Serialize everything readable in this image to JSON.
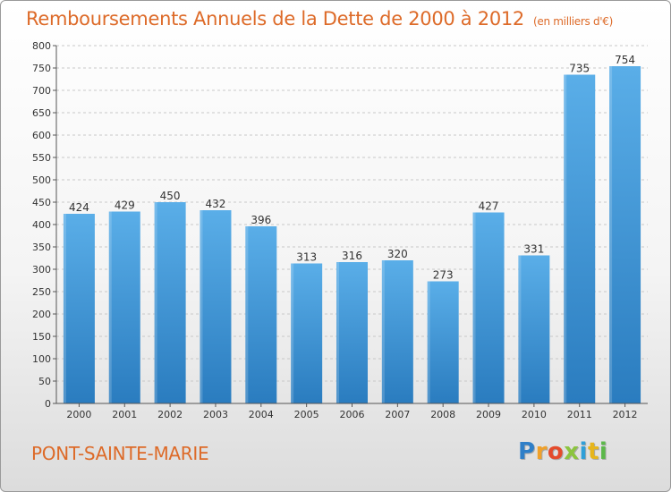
{
  "header": {
    "title": "Remboursements Annuels de la Dette de 2000 à 2012",
    "subtitle": "(en milliers d'€)"
  },
  "footer": {
    "town": "PONT-SAINTE-MARIE",
    "logo_letters": [
      {
        "char": "P",
        "color": "#2f7fc8"
      },
      {
        "char": "r",
        "color": "#f0a12a"
      },
      {
        "char": "o",
        "color": "#e44b2c"
      },
      {
        "char": "x",
        "color": "#8cc43f"
      },
      {
        "char": "i",
        "color": "#2f9fd8"
      },
      {
        "char": "t",
        "color": "#e6b51c"
      },
      {
        "char": "i",
        "color": "#5cb84a"
      }
    ]
  },
  "chart_data": {
    "type": "bar",
    "categories": [
      "2000",
      "2001",
      "2002",
      "2003",
      "2004",
      "2005",
      "2006",
      "2007",
      "2008",
      "2009",
      "2010",
      "2011",
      "2012"
    ],
    "values": [
      424,
      429,
      450,
      432,
      396,
      313,
      316,
      320,
      273,
      427,
      331,
      735,
      754
    ],
    "data_labels": [
      "424",
      "429",
      "450",
      "432",
      "396",
      "313",
      "316",
      "320",
      "273",
      "427",
      "331",
      "735",
      "754"
    ],
    "ylim": [
      0,
      800
    ],
    "yticks": [
      0,
      50,
      100,
      150,
      200,
      250,
      300,
      350,
      400,
      450,
      500,
      550,
      600,
      650,
      700,
      750,
      800
    ],
    "grid": true,
    "legend": "none",
    "bar_color_top": "#5aaee8",
    "bar_color_bottom": "#2a7cbf"
  }
}
